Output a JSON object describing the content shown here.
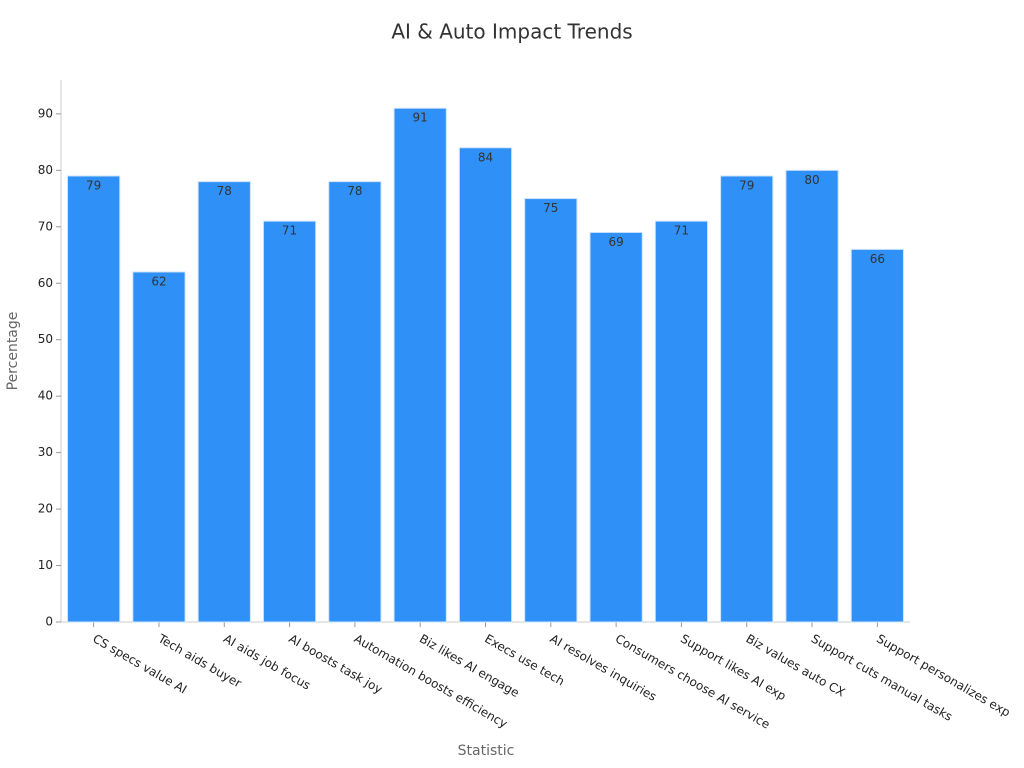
{
  "chart_data": {
    "type": "bar",
    "title": "AI & Auto Impact Trends",
    "x_label": "Statistic",
    "y_label": "Percentage",
    "categories": [
      "CS specs value AI",
      "Tech aids buyer",
      "AI aids job focus",
      "AI boosts task joy",
      "Automation boosts efficiency",
      "Biz likes AI engage",
      "Execs use tech",
      "AI resolves inquiries",
      "Consumers choose AI service",
      "Support likes AI exp",
      "Biz values auto CX",
      "Support cuts manual tasks",
      "Support personalizes exp"
    ],
    "values": [
      79,
      62,
      78,
      71,
      78,
      91,
      84,
      75,
      69,
      71,
      79,
      80,
      66
    ],
    "color": "#2f91f7",
    "ylim": [
      0,
      96
    ],
    "yticks": [
      0,
      10,
      20,
      30,
      40,
      50,
      60,
      70,
      80,
      90
    ],
    "grid": false
  }
}
